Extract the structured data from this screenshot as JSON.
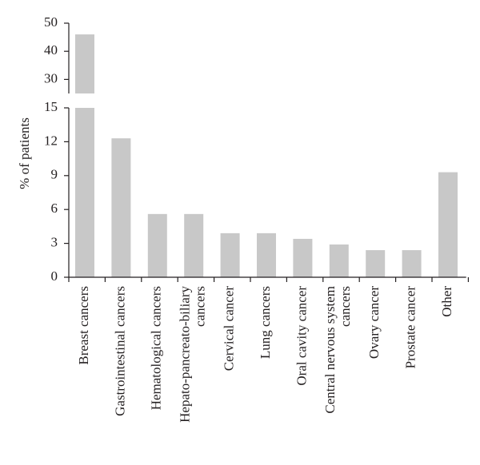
{
  "chart_data": {
    "type": "bar",
    "title": "",
    "xlabel": "",
    "ylabel": "% of patients",
    "broken_axis": true,
    "ylim_lower": [
      0,
      15
    ],
    "ylim_upper": [
      25,
      50
    ],
    "yticks_lower": [
      0,
      3,
      6,
      9,
      12,
      15
    ],
    "yticks_upper": [
      30,
      40,
      50
    ],
    "grid": false,
    "legend": "none",
    "bar_color": "#c8c8c8",
    "categories": [
      [
        "Breast cancers"
      ],
      [
        "Gastrointestinal cancers"
      ],
      [
        "Hematological cancers"
      ],
      [
        "Hepato-pancreato-biliary",
        "cancers"
      ],
      [
        "Cervical cancer"
      ],
      [
        "Lung cancers"
      ],
      [
        "Oral cavity cancer"
      ],
      [
        "Central nervous system",
        "cancers"
      ],
      [
        "Ovary cancer"
      ],
      [
        "Prostate cancer"
      ],
      [
        "Other"
      ]
    ],
    "values": [
      46,
      12.3,
      5.6,
      5.6,
      3.9,
      3.9,
      3.4,
      2.9,
      2.4,
      2.4,
      9.3
    ]
  }
}
